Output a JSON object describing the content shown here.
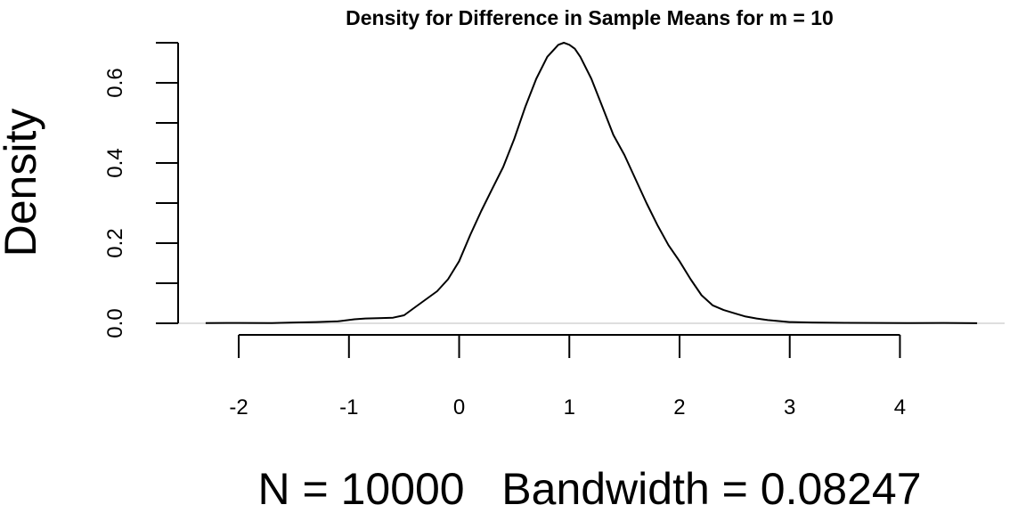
{
  "chart_data": {
    "type": "line",
    "title": "Density for Difference in Sample Means for m = 10",
    "xlabel": "N = 10000   Bandwidth = 0.08247",
    "ylabel": "Density",
    "xlim": [
      -2.55,
      4.95
    ],
    "ylim": [
      0,
      0.7
    ],
    "x_ticks": [
      -2,
      -1,
      0,
      1,
      2,
      3,
      4
    ],
    "x_tick_labels": [
      "-2",
      "-1",
      "0",
      "1",
      "2",
      "3",
      "4"
    ],
    "y_ticks": [
      0.0,
      0.1,
      0.2,
      0.3,
      0.4,
      0.5,
      0.6,
      0.7
    ],
    "y_tick_labels": [
      "0.0",
      "",
      "0.2",
      "",
      "0.4",
      "",
      "0.6",
      ""
    ],
    "grid": false,
    "legend": "none",
    "series": [
      {
        "x": [
          -2.3,
          -2.0,
          -1.7,
          -1.5,
          -1.3,
          -1.1,
          -0.95,
          -0.85,
          -0.7,
          -0.6,
          -0.5,
          -0.4,
          -0.3,
          -0.2,
          -0.1,
          0.0,
          0.1,
          0.2,
          0.3,
          0.4,
          0.5,
          0.6,
          0.7,
          0.8,
          0.9,
          0.95,
          1.0,
          1.05,
          1.1,
          1.2,
          1.3,
          1.4,
          1.5,
          1.6,
          1.7,
          1.8,
          1.9,
          2.0,
          2.1,
          2.2,
          2.3,
          2.4,
          2.5,
          2.6,
          2.7,
          2.8,
          3.0,
          3.2,
          3.5,
          3.8,
          4.1,
          4.4,
          4.7
        ],
        "y": [
          0.0005,
          0.0008,
          0.0006,
          0.002,
          0.003,
          0.005,
          0.01,
          0.012,
          0.013,
          0.014,
          0.02,
          0.04,
          0.06,
          0.08,
          0.11,
          0.155,
          0.22,
          0.28,
          0.335,
          0.39,
          0.46,
          0.54,
          0.61,
          0.665,
          0.695,
          0.7,
          0.695,
          0.685,
          0.665,
          0.61,
          0.54,
          0.47,
          0.42,
          0.36,
          0.3,
          0.245,
          0.195,
          0.155,
          0.11,
          0.07,
          0.045,
          0.033,
          0.025,
          0.017,
          0.012,
          0.008,
          0.003,
          0.002,
          0.0012,
          0.0008,
          0.0005,
          0.0008,
          0.0003
        ]
      }
    ]
  }
}
